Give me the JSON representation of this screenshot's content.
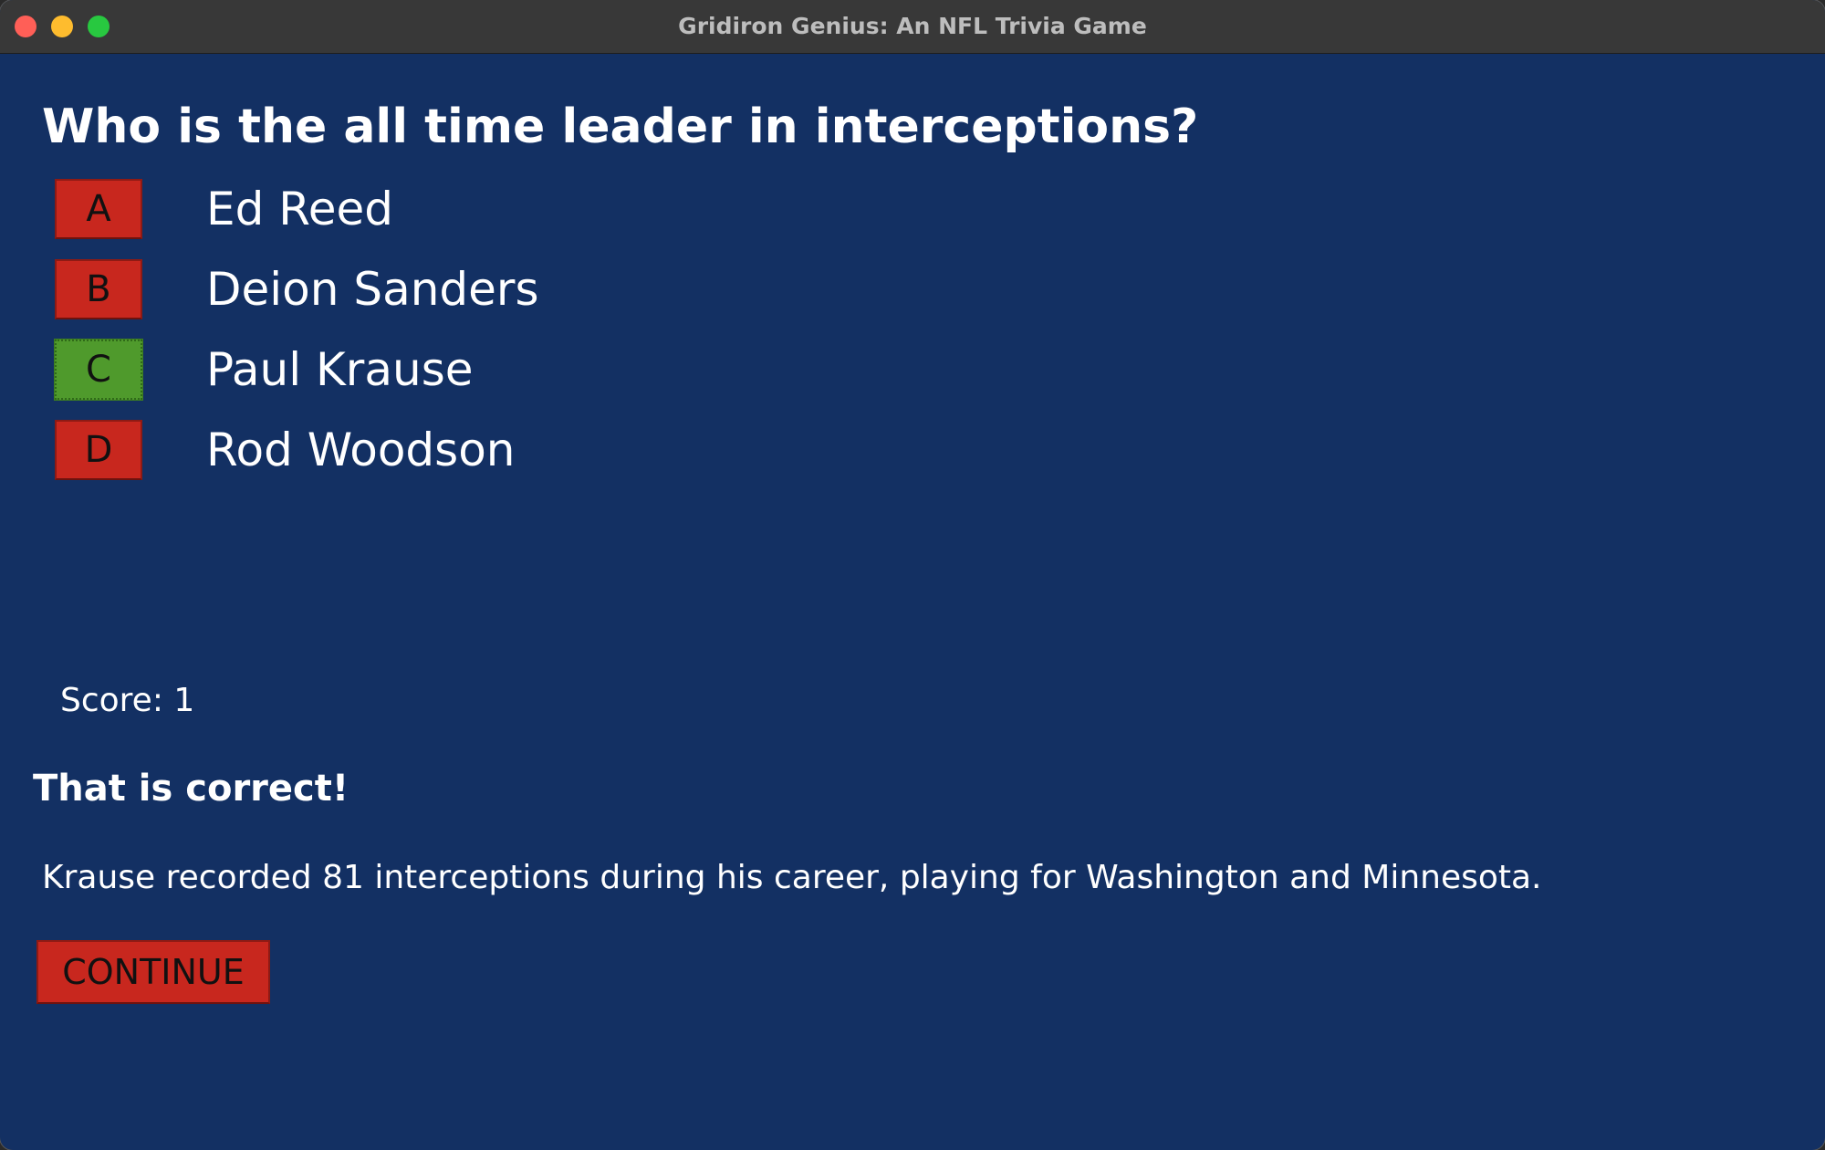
{
  "window": {
    "title": "Gridiron Genius: An NFL Trivia Game"
  },
  "question": "Who is the all time leader in interceptions?",
  "options": [
    {
      "letter": "A",
      "text": "Ed Reed",
      "state": "default"
    },
    {
      "letter": "B",
      "text": "Deion Sanders",
      "state": "default"
    },
    {
      "letter": "C",
      "text": "Paul Krause",
      "state": "correct"
    },
    {
      "letter": "D",
      "text": "Rod Woodson",
      "state": "default"
    }
  ],
  "score_text": "Score: 1",
  "feedback": "That is correct!",
  "explanation": "Krause recorded 81 interceptions during his career, playing for Washington and Minnesota.",
  "continue_label": "CONTINUE",
  "colors": {
    "background": "#133063",
    "button_red": "#c8271e",
    "button_correct_green": "#4f9a2c",
    "text": "#ffffff"
  }
}
